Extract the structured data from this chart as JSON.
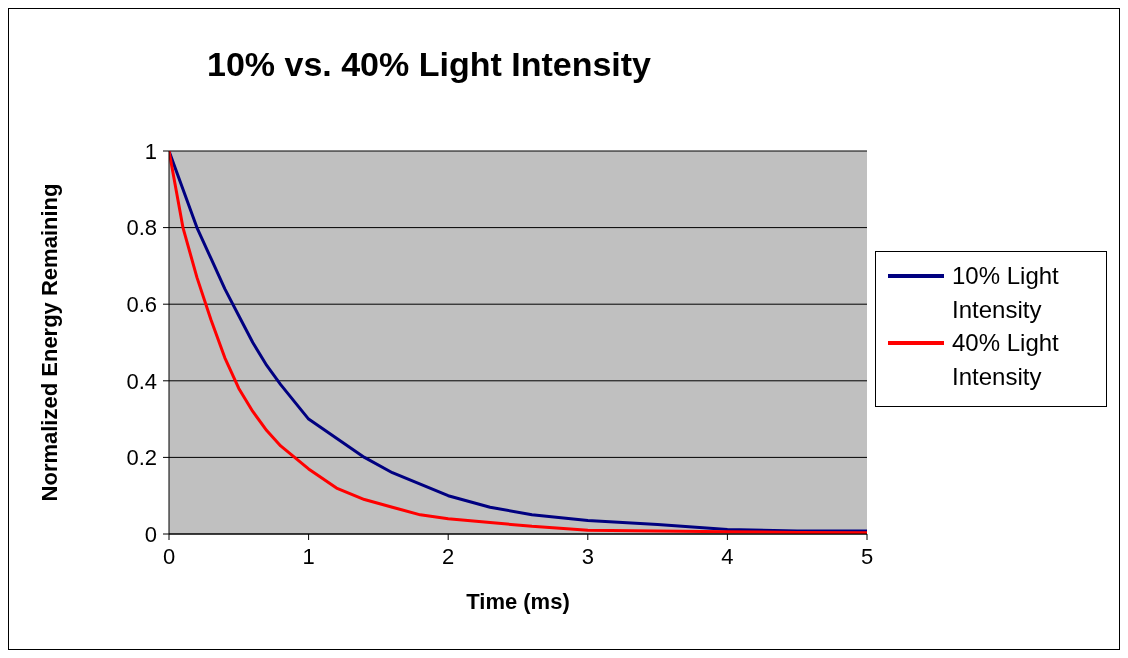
{
  "chart_data": {
    "type": "line",
    "title": "10% vs. 40% Light Intensity",
    "xlabel": "Time (ms)",
    "ylabel": "Normalized Energy Remaining",
    "x": [
      0,
      0.1,
      0.2,
      0.3,
      0.4,
      0.5,
      0.6,
      0.7,
      0.8,
      1.0,
      1.2,
      1.4,
      1.6,
      1.8,
      2.0,
      2.3,
      2.6,
      3.0,
      3.5,
      4.0,
      4.5,
      5.0
    ],
    "series": [
      {
        "name": "10% Light Intensity",
        "color": "#000080",
        "values": [
          1,
          0.9,
          0.8,
          0.72,
          0.64,
          0.57,
          0.5,
          0.44,
          0.39,
          0.3,
          0.25,
          0.2,
          0.16,
          0.13,
          0.1,
          0.07,
          0.05,
          0.035,
          0.025,
          0.012,
          0.008,
          0.008
        ]
      },
      {
        "name": "40% Light Intensity",
        "color": "#ff0000",
        "values": [
          1,
          0.8,
          0.67,
          0.56,
          0.46,
          0.38,
          0.32,
          0.27,
          0.23,
          0.17,
          0.12,
          0.09,
          0.07,
          0.05,
          0.04,
          0.03,
          0.02,
          0.01,
          0.008,
          0.006,
          0.004,
          0.003
        ]
      }
    ],
    "xlim": [
      0,
      5
    ],
    "xticks": [
      0,
      1,
      2,
      3,
      4,
      5
    ],
    "ylim": [
      0,
      1
    ],
    "yticks": [
      0,
      0.2,
      0.4,
      0.6,
      0.8,
      1
    ],
    "grid": "y",
    "legend": "right",
    "marker": "none",
    "line_style": "solid"
  }
}
